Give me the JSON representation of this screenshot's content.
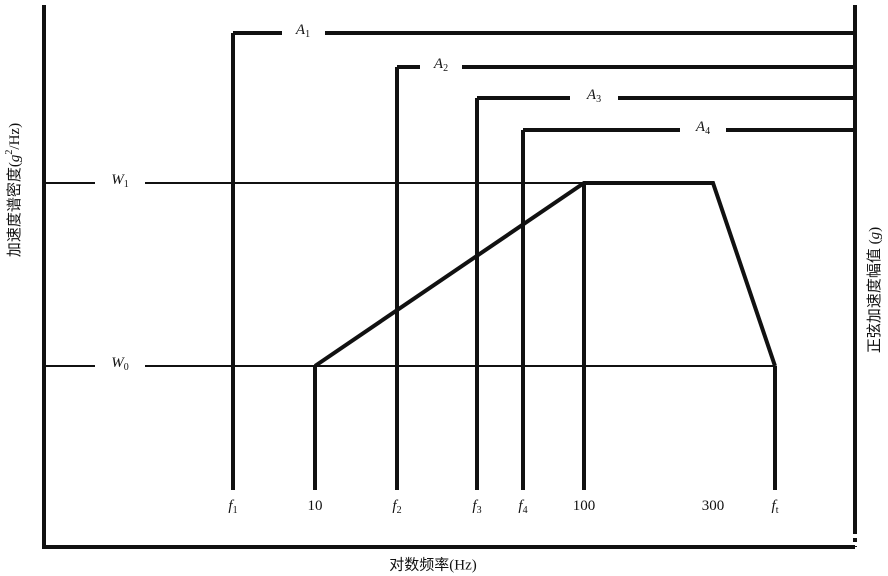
{
  "axes": {
    "y_left": {
      "text": "加速度谱密度(",
      "var": "g",
      "sup": "2",
      "unit": "/Hz)"
    },
    "y_right": {
      "text": "正弦加速度幅值 (",
      "var": "g",
      "unit": ")"
    },
    "x": "对数频率(Hz)"
  },
  "amplitudes": [
    {
      "main": "A",
      "sub": "1"
    },
    {
      "main": "A",
      "sub": "2"
    },
    {
      "main": "A",
      "sub": "3"
    },
    {
      "main": "A",
      "sub": "4"
    }
  ],
  "levels": [
    {
      "main": "W",
      "sub": "1"
    },
    {
      "main": "W",
      "sub": "0"
    }
  ],
  "frequencies": [
    {
      "main": "f",
      "sub": "1"
    },
    {
      "main": "10",
      "sub": ""
    },
    {
      "main": "f",
      "sub": "2"
    },
    {
      "main": "f",
      "sub": "3"
    },
    {
      "main": "f",
      "sub": "4"
    },
    {
      "main": "100",
      "sub": ""
    },
    {
      "main": "300",
      "sub": ""
    },
    {
      "main": "f",
      "sub": "t"
    }
  ]
}
